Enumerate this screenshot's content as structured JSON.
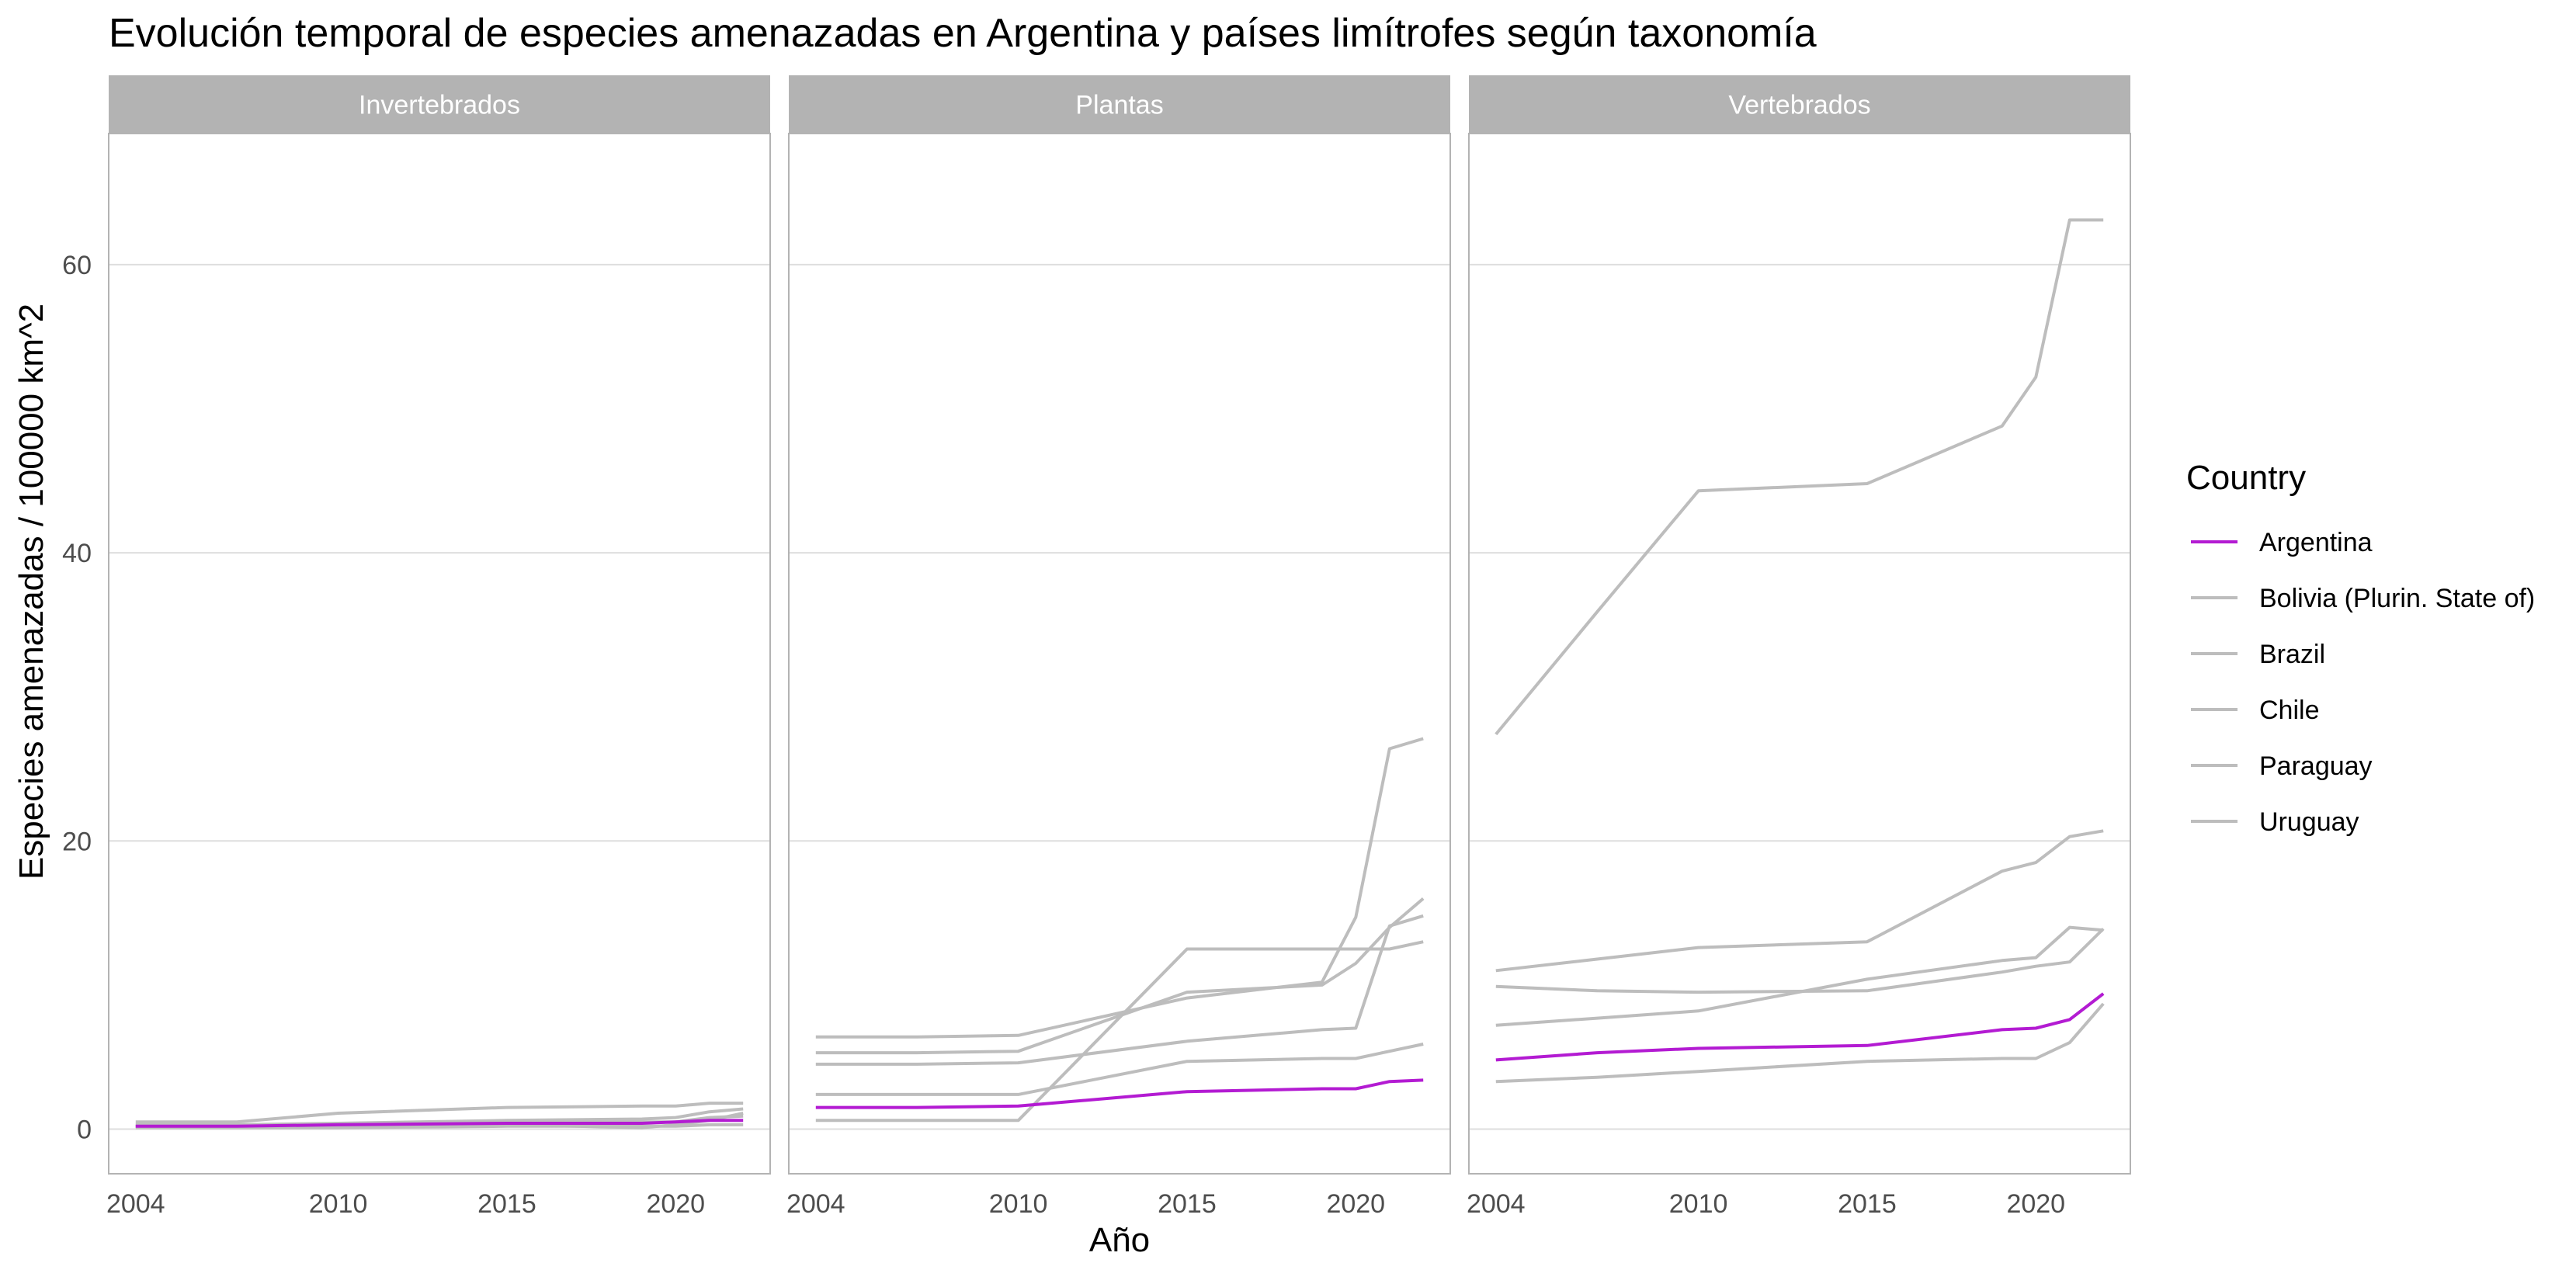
{
  "chart_data": {
    "type": "line",
    "title": "Evolución temporal de especies amenazadas en Argentina y países limítrofes según taxonomía",
    "xlabel": "Año",
    "ylabel": "Especies amenazadas / 100000 km^2",
    "xlim": [
      2003.2,
      2022.8
    ],
    "ylim": [
      -3.1,
      69.1
    ],
    "x_ticks": [
      2004,
      2010,
      2015,
      2020
    ],
    "y_ticks": [
      0,
      20,
      40,
      60
    ],
    "grid": true,
    "legend": {
      "title": "Country",
      "position": "right",
      "entries": [
        "Argentina",
        "Bolivia (Plurin. State of)",
        "Brazil",
        "Chile",
        "Paraguay",
        "Uruguay"
      ]
    },
    "colors": {
      "Argentina": "#b31bd2",
      "other": "#bdbdbd",
      "strip_bg": "#b3b3b3",
      "strip_text": "#ffffff",
      "grid": "#dedede",
      "border": "#b3b3b3"
    },
    "x": [
      2004,
      2007,
      2010,
      2015,
      2019,
      2020,
      2021,
      2022
    ],
    "facets": [
      {
        "label": "Invertebrados",
        "series": [
          {
            "name": "Argentina",
            "values": [
              0.2,
              0.2,
              0.3,
              0.4,
              0.4,
              0.5,
              0.6,
              0.6
            ]
          },
          {
            "name": "Bolivia (Plurin. State of)",
            "values": [
              0.2,
              0.2,
              0.3,
              0.4,
              0.5,
              0.5,
              0.8,
              0.9
            ]
          },
          {
            "name": "Brazil",
            "values": [
              0.3,
              0.3,
              0.4,
              0.6,
              0.7,
              0.8,
              1.2,
              1.4
            ]
          },
          {
            "name": "Chile",
            "values": [
              0.1,
              0.1,
              0.1,
              0.2,
              0.2,
              0.2,
              0.3,
              0.3
            ]
          },
          {
            "name": "Paraguay",
            "values": [
              0.2,
              0.2,
              0.2,
              0.3,
              0.1,
              0.3,
              0.6,
              1.1
            ]
          },
          {
            "name": "Uruguay",
            "values": [
              0.5,
              0.5,
              1.1,
              1.5,
              1.6,
              1.6,
              1.8,
              1.8
            ]
          }
        ]
      },
      {
        "label": "Plantas",
        "series": [
          {
            "name": "Argentina",
            "values": [
              1.5,
              1.5,
              1.6,
              2.6,
              2.8,
              2.8,
              3.3,
              3.4
            ]
          },
          {
            "name": "Bolivia (Plurin. State of)",
            "values": [
              0.6,
              0.6,
              0.6,
              12.5,
              12.5,
              12.5,
              12.5,
              13.0
            ]
          },
          {
            "name": "Brazil",
            "values": [
              4.5,
              4.5,
              4.6,
              6.1,
              6.9,
              7.0,
              14.1,
              14.8
            ]
          },
          {
            "name": "Chile",
            "values": [
              2.4,
              2.4,
              2.4,
              4.7,
              4.9,
              4.9,
              5.4,
              5.9
            ]
          },
          {
            "name": "Paraguay",
            "values": [
              5.3,
              5.3,
              5.4,
              9.5,
              10.0,
              11.5,
              14.0,
              16.0
            ]
          },
          {
            "name": "Uruguay",
            "values": [
              6.4,
              6.4,
              6.5,
              9.1,
              10.2,
              14.7,
              26.4,
              27.1
            ]
          }
        ]
      },
      {
        "label": "Vertebrados",
        "series": [
          {
            "name": "Argentina",
            "values": [
              4.8,
              5.3,
              5.6,
              5.8,
              6.9,
              7.0,
              7.6,
              9.4
            ]
          },
          {
            "name": "Bolivia (Plurin. State of)",
            "values": [
              9.9,
              9.6,
              9.5,
              9.6,
              10.9,
              11.3,
              11.6,
              13.9
            ]
          },
          {
            "name": "Brazil",
            "values": [
              7.2,
              7.7,
              8.2,
              10.4,
              11.7,
              11.9,
              14.0,
              13.8
            ]
          },
          {
            "name": "Chile",
            "values": [
              3.3,
              3.6,
              4.0,
              4.7,
              4.9,
              4.9,
              6.0,
              8.7
            ]
          },
          {
            "name": "Paraguay",
            "values": [
              11.0,
              11.8,
              12.6,
              13.0,
              17.9,
              18.5,
              20.3,
              20.7
            ]
          },
          {
            "name": "Uruguay",
            "values": [
              27.4,
              35.9,
              44.3,
              44.8,
              48.8,
              52.2,
              63.1,
              63.1
            ]
          }
        ]
      }
    ]
  }
}
